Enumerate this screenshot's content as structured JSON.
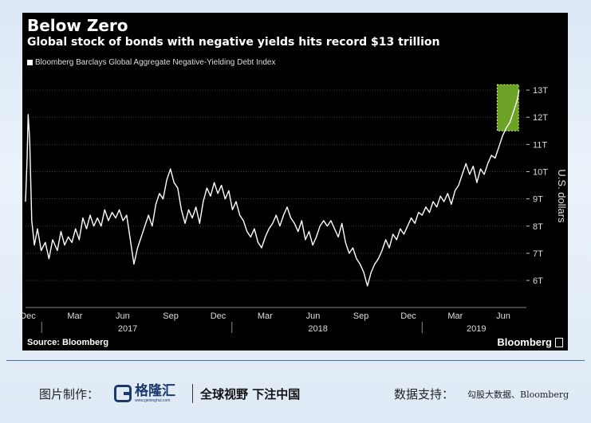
{
  "chart_data": {
    "type": "line",
    "title": "Below Zero",
    "subtitle": "Global stock of bonds with negative yields hits record $13 trillion",
    "ylabel": "U.S. dollars",
    "ylim": [
      5.3,
      13.5
    ],
    "y_ticks": [
      6,
      7,
      8,
      9,
      10,
      11,
      12,
      13
    ],
    "y_tick_labels": [
      "6T",
      "7T",
      "8T",
      "9T",
      "10T",
      "11T",
      "12T",
      "13T"
    ],
    "x_range": [
      "2016-12-01",
      "2019-07-20"
    ],
    "x_ticks": [
      {
        "date": "2016-12-01",
        "label": "Dec"
      },
      {
        "date": "2017-03-01",
        "label": "Mar"
      },
      {
        "date": "2017-06-01",
        "label": "Jun"
      },
      {
        "date": "2017-09-01",
        "label": "Sep"
      },
      {
        "date": "2017-12-01",
        "label": "Dec"
      },
      {
        "date": "2018-03-01",
        "label": "Mar"
      },
      {
        "date": "2018-06-01",
        "label": "Jun"
      },
      {
        "date": "2018-09-01",
        "label": "Sep"
      },
      {
        "date": "2018-12-01",
        "label": "Dec"
      },
      {
        "date": "2019-03-01",
        "label": "Mar"
      },
      {
        "date": "2019-06-01",
        "label": "Jun"
      }
    ],
    "year_labels": [
      {
        "date": "2017-06-15",
        "label": "2017"
      },
      {
        "date": "2018-06-15",
        "label": "2018"
      },
      {
        "date": "2019-04-15",
        "label": "2019"
      }
    ],
    "year_dividers": [
      "2017-01-01",
      "2018-01-01",
      "2019-01-01"
    ],
    "grid": true,
    "legend": "top-left",
    "highlight": {
      "x": [
        "2019-05-25",
        "2019-07-05"
      ],
      "y": [
        11.5,
        13.2
      ],
      "color": "#7fbf2e"
    },
    "series": [
      {
        "name": "Bloomberg Barclays Global Aggregate Negative-Yielding Debt Index",
        "color": "#ffffff",
        "points": [
          [
            "2016-12-01",
            8.9
          ],
          [
            "2016-12-04",
            10.5
          ],
          [
            "2016-12-06",
            12.1
          ],
          [
            "2016-12-09",
            11.2
          ],
          [
            "2016-12-13",
            8.2
          ],
          [
            "2016-12-18",
            7.3
          ],
          [
            "2016-12-24",
            7.9
          ],
          [
            "2016-12-31",
            7.1
          ],
          [
            "2017-01-08",
            7.4
          ],
          [
            "2017-01-15",
            6.8
          ],
          [
            "2017-01-22",
            7.5
          ],
          [
            "2017-01-31",
            7.1
          ],
          [
            "2017-02-07",
            7.8
          ],
          [
            "2017-02-14",
            7.3
          ],
          [
            "2017-02-21",
            7.6
          ],
          [
            "2017-02-28",
            7.4
          ],
          [
            "2017-03-07",
            7.9
          ],
          [
            "2017-03-14",
            7.5
          ],
          [
            "2017-03-21",
            8.3
          ],
          [
            "2017-03-28",
            7.9
          ],
          [
            "2017-04-04",
            8.4
          ],
          [
            "2017-04-11",
            8.0
          ],
          [
            "2017-04-18",
            8.3
          ],
          [
            "2017-04-25",
            8.0
          ],
          [
            "2017-05-02",
            8.6
          ],
          [
            "2017-05-09",
            8.2
          ],
          [
            "2017-05-16",
            8.5
          ],
          [
            "2017-05-23",
            8.3
          ],
          [
            "2017-05-30",
            8.6
          ],
          [
            "2017-06-06",
            8.2
          ],
          [
            "2017-06-13",
            8.4
          ],
          [
            "2017-06-20",
            7.5
          ],
          [
            "2017-06-27",
            6.6
          ],
          [
            "2017-07-04",
            7.2
          ],
          [
            "2017-07-11",
            7.6
          ],
          [
            "2017-07-18",
            8.0
          ],
          [
            "2017-07-25",
            8.4
          ],
          [
            "2017-08-01",
            8.0
          ],
          [
            "2017-08-08",
            8.8
          ],
          [
            "2017-08-15",
            9.2
          ],
          [
            "2017-08-22",
            9.0
          ],
          [
            "2017-08-29",
            9.7
          ],
          [
            "2017-09-05",
            10.1
          ],
          [
            "2017-09-12",
            9.6
          ],
          [
            "2017-09-19",
            9.4
          ],
          [
            "2017-09-26",
            8.6
          ],
          [
            "2017-10-03",
            8.1
          ],
          [
            "2017-10-10",
            8.6
          ],
          [
            "2017-10-17",
            8.3
          ],
          [
            "2017-10-24",
            8.7
          ],
          [
            "2017-10-31",
            8.1
          ],
          [
            "2017-11-07",
            8.9
          ],
          [
            "2017-11-14",
            9.4
          ],
          [
            "2017-11-21",
            9.1
          ],
          [
            "2017-11-28",
            9.6
          ],
          [
            "2017-12-05",
            9.2
          ],
          [
            "2017-12-12",
            9.5
          ],
          [
            "2017-12-19",
            9.0
          ],
          [
            "2017-12-26",
            9.3
          ],
          [
            "2018-01-02",
            8.6
          ],
          [
            "2018-01-09",
            8.9
          ],
          [
            "2018-01-16",
            8.4
          ],
          [
            "2018-01-23",
            8.2
          ],
          [
            "2018-01-30",
            7.8
          ],
          [
            "2018-02-06",
            7.6
          ],
          [
            "2018-02-13",
            7.9
          ],
          [
            "2018-02-20",
            7.4
          ],
          [
            "2018-02-27",
            7.2
          ],
          [
            "2018-03-06",
            7.6
          ],
          [
            "2018-03-13",
            7.9
          ],
          [
            "2018-03-20",
            8.1
          ],
          [
            "2018-03-27",
            8.4
          ],
          [
            "2018-04-03",
            8.0
          ],
          [
            "2018-04-10",
            8.4
          ],
          [
            "2018-04-17",
            8.7
          ],
          [
            "2018-04-24",
            8.3
          ],
          [
            "2018-05-01",
            8.1
          ],
          [
            "2018-05-08",
            7.8
          ],
          [
            "2018-05-15",
            8.2
          ],
          [
            "2018-05-22",
            7.5
          ],
          [
            "2018-05-29",
            7.8
          ],
          [
            "2018-06-05",
            7.3
          ],
          [
            "2018-06-12",
            7.6
          ],
          [
            "2018-06-19",
            8.0
          ],
          [
            "2018-06-26",
            8.2
          ],
          [
            "2018-07-03",
            8.0
          ],
          [
            "2018-07-10",
            8.2
          ],
          [
            "2018-07-17",
            7.9
          ],
          [
            "2018-07-24",
            7.6
          ],
          [
            "2018-07-31",
            8.1
          ],
          [
            "2018-08-07",
            7.4
          ],
          [
            "2018-08-14",
            7.0
          ],
          [
            "2018-08-21",
            7.2
          ],
          [
            "2018-08-28",
            6.8
          ],
          [
            "2018-09-04",
            6.6
          ],
          [
            "2018-09-11",
            6.3
          ],
          [
            "2018-09-18",
            5.8
          ],
          [
            "2018-09-25",
            6.3
          ],
          [
            "2018-10-02",
            6.6
          ],
          [
            "2018-10-09",
            6.8
          ],
          [
            "2018-10-16",
            7.1
          ],
          [
            "2018-10-23",
            7.5
          ],
          [
            "2018-10-30",
            7.2
          ],
          [
            "2018-11-06",
            7.7
          ],
          [
            "2018-11-13",
            7.5
          ],
          [
            "2018-11-20",
            7.9
          ],
          [
            "2018-11-27",
            7.7
          ],
          [
            "2018-12-04",
            8.0
          ],
          [
            "2018-12-11",
            8.3
          ],
          [
            "2018-12-18",
            8.1
          ],
          [
            "2018-12-25",
            8.5
          ],
          [
            "2019-01-01",
            8.4
          ],
          [
            "2019-01-08",
            8.7
          ],
          [
            "2019-01-15",
            8.5
          ],
          [
            "2019-01-22",
            8.9
          ],
          [
            "2019-01-29",
            8.7
          ],
          [
            "2019-02-05",
            9.1
          ],
          [
            "2019-02-12",
            8.9
          ],
          [
            "2019-02-19",
            9.2
          ],
          [
            "2019-02-26",
            8.8
          ],
          [
            "2019-03-05",
            9.3
          ],
          [
            "2019-03-12",
            9.5
          ],
          [
            "2019-03-19",
            9.9
          ],
          [
            "2019-03-26",
            10.3
          ],
          [
            "2019-04-02",
            9.9
          ],
          [
            "2019-04-09",
            10.2
          ],
          [
            "2019-04-16",
            9.6
          ],
          [
            "2019-04-23",
            10.1
          ],
          [
            "2019-04-30",
            9.9
          ],
          [
            "2019-05-07",
            10.3
          ],
          [
            "2019-05-14",
            10.6
          ],
          [
            "2019-05-21",
            10.5
          ],
          [
            "2019-05-28",
            10.9
          ],
          [
            "2019-06-04",
            11.3
          ],
          [
            "2019-06-11",
            11.6
          ],
          [
            "2019-06-18",
            11.8
          ],
          [
            "2019-06-25",
            12.2
          ],
          [
            "2019-07-02",
            12.6
          ],
          [
            "2019-07-06",
            13.0
          ]
        ]
      }
    ],
    "source": "Source: Bloomberg",
    "brand": "Bloomberg"
  },
  "footer": {
    "credit_label": "图片制作：",
    "logo_name": "格隆汇",
    "logo_url": "www.gelonghui.com",
    "slogan": "全球视野 下注中国",
    "data_source_label": "数据支持：",
    "data_source_value": "勾股大数据、Bloomberg"
  },
  "colors": {
    "panel_background": "#000000",
    "line": "#ffffff",
    "highlight": "#7fbf2e",
    "footer_rule": "#4a6fa8"
  }
}
